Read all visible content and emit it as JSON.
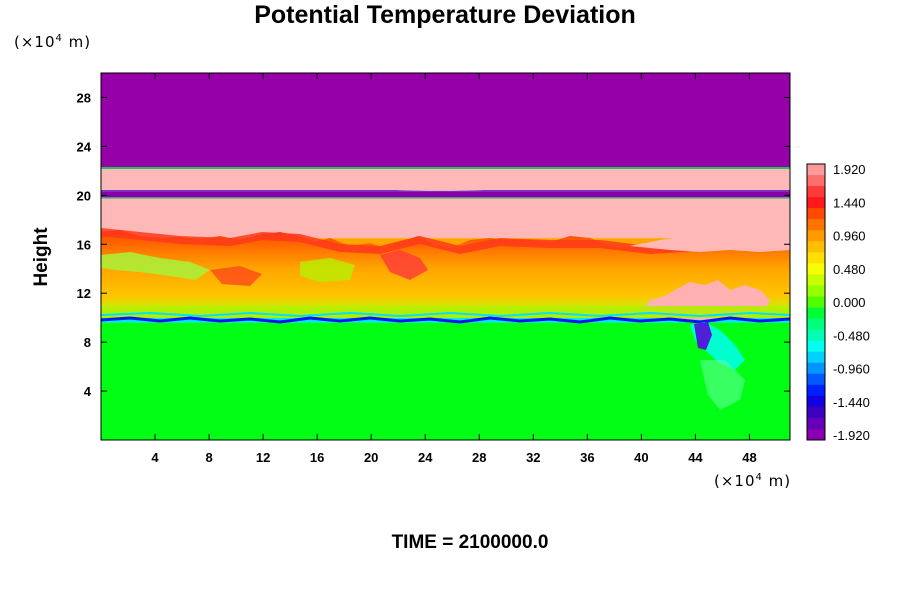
{
  "chart_data": {
    "type": "heatmap",
    "title": "Potential Temperature Deviation",
    "ylabel": "Height",
    "xlabel": "",
    "y_unit": {
      "prefix": "(×10",
      "exp": "4",
      "suffix": " m)"
    },
    "x_unit": {
      "prefix": "(×10",
      "exp": "4",
      "suffix": " m)"
    },
    "footer": "TIME = 2100000.0",
    "xlim": [
      0,
      51
    ],
    "ylim": [
      0,
      30
    ],
    "x_ticks": [
      "4",
      "8",
      "12",
      "16",
      "20",
      "24",
      "28",
      "32",
      "36",
      "40",
      "44",
      "48"
    ],
    "y_ticks": [
      "4",
      "8",
      "12",
      "16",
      "20",
      "24",
      "28"
    ],
    "colorbar": {
      "labels": [
        "1.920",
        "1.440",
        "0.960",
        "0.480",
        "0.000",
        "-0.480",
        "-0.960",
        "-1.440",
        "-1.920"
      ],
      "colors": [
        "#ff9a9a",
        "#ff6e6e",
        "#ff3a3a",
        "#ff1a1a",
        "#ff4a00",
        "#ff7400",
        "#ff9a00",
        "#ffbe00",
        "#ffe000",
        "#f6ff00",
        "#c8ff00",
        "#96ff00",
        "#50ff00",
        "#00ff32",
        "#00ff7a",
        "#00ffb4",
        "#00fff0",
        "#00d2ff",
        "#0096ff",
        "#005aff",
        "#0020ff",
        "#1400e0",
        "#3c00c0",
        "#6600b8",
        "#8800b0"
      ]
    },
    "bands": [
      {
        "y": [
          22.2,
          30
        ],
        "value": -2.0,
        "color": "#9500a8"
      },
      {
        "y": [
          20.4,
          22.2
        ],
        "value": 2.0,
        "color": "#ffb8b8"
      },
      {
        "y": [
          19.8,
          20.4
        ],
        "value": -1.9,
        "color": "#8800a8"
      },
      {
        "y": [
          16.5,
          19.8
        ],
        "value": 2.0,
        "color": "#ffb8b8"
      },
      {
        "y": [
          10.5,
          16.5
        ],
        "value": 1.0,
        "color": "#ffa500"
      },
      {
        "y": [
          9.6,
          10.5
        ],
        "value": -0.5,
        "color": "#00e6ff"
      },
      {
        "y": [
          0,
          9.6
        ],
        "value": 0.0,
        "color": "#00ff14"
      }
    ]
  }
}
